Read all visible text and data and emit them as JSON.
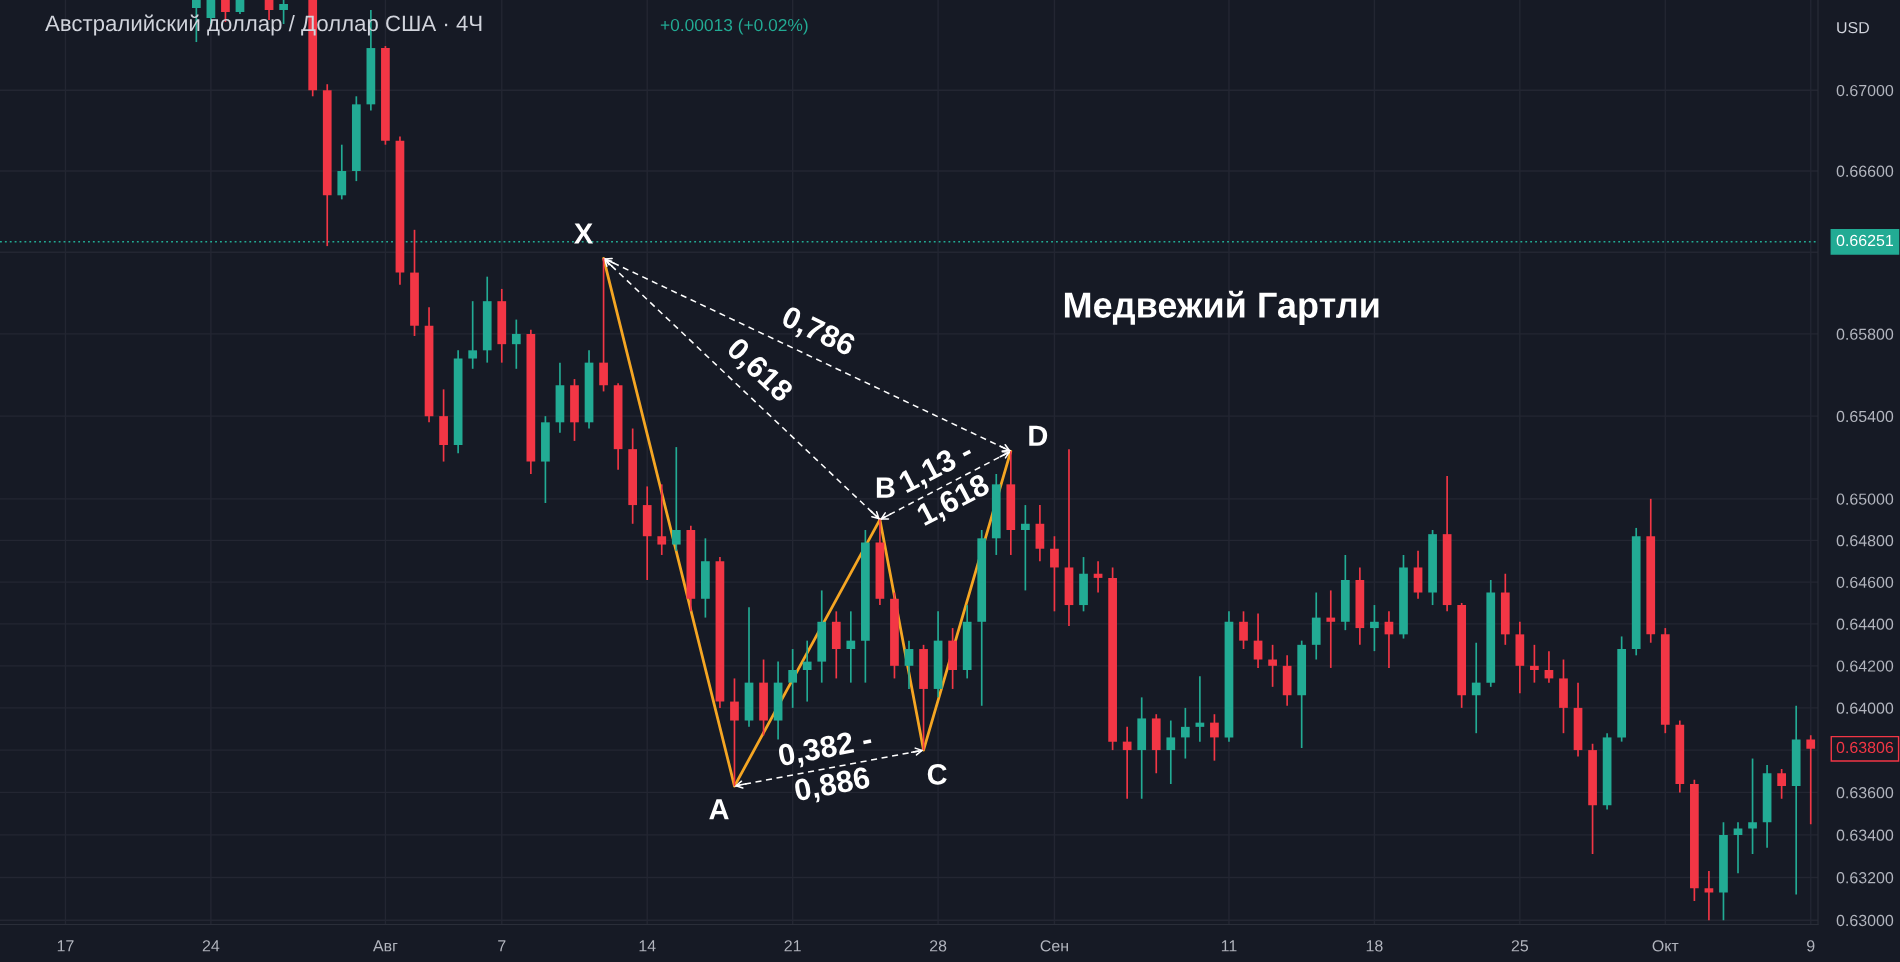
{
  "chart_data": {
    "type": "candlestick",
    "title": "Австралийский доллар / Доллар США · 4Ч",
    "subtitle": "+0.00013 (+0.02%)",
    "ylabel": "USD",
    "log": true,
    "grid": true,
    "ylim": [
      0.6298,
      0.6745
    ],
    "yticks": [
      {
        "value": 0.67,
        "label": "0.67000"
      },
      {
        "value": 0.666,
        "label": "0.66600"
      },
      {
        "value": 0.662,
        "label": null
      },
      {
        "value": 0.658,
        "label": "0.65800"
      },
      {
        "value": 0.654,
        "label": "0.65400"
      },
      {
        "value": 0.65,
        "label": "0.65000"
      },
      {
        "value": 0.648,
        "label": "0.64800"
      },
      {
        "value": 0.646,
        "label": "0.64600"
      },
      {
        "value": 0.644,
        "label": "0.64400"
      },
      {
        "value": 0.642,
        "label": "0.64200"
      },
      {
        "value": 0.64,
        "label": "0.64000"
      },
      {
        "value": 0.638,
        "label": null
      },
      {
        "value": 0.636,
        "label": "0.63600"
      },
      {
        "value": 0.634,
        "label": "0.63400"
      },
      {
        "value": 0.632,
        "label": "0.63200"
      },
      {
        "value": 0.63,
        "label": "0.63000"
      }
    ],
    "categories": [
      null,
      null,
      null,
      null,
      "17",
      null,
      null,
      null,
      null,
      null,
      null,
      null,
      null,
      null,
      "24",
      null,
      null,
      null,
      null,
      null,
      null,
      null,
      null,
      null,
      null,
      null,
      "Авг",
      null,
      null,
      null,
      null,
      null,
      null,
      null,
      "7",
      null,
      null,
      null,
      null,
      null,
      null,
      null,
      null,
      null,
      "14",
      null,
      null,
      null,
      null,
      null,
      null,
      null,
      null,
      null,
      "21",
      null,
      null,
      null,
      null,
      null,
      null,
      null,
      null,
      null,
      "28",
      null,
      null,
      null,
      null,
      null,
      null,
      null,
      "Сен",
      null,
      null,
      null,
      null,
      null,
      null,
      null,
      null,
      null,
      null,
      null,
      "11",
      null,
      null,
      null,
      null,
      null,
      null,
      null,
      null,
      null,
      "18",
      null,
      null,
      null,
      null,
      null,
      null,
      null,
      null,
      null,
      "25",
      null,
      null,
      null,
      null,
      null,
      null,
      null,
      null,
      null,
      "Окт",
      null,
      null,
      null,
      null,
      null,
      null,
      null,
      null,
      null,
      "9"
    ],
    "ohlc": [
      null,
      null,
      null,
      null,
      null,
      null,
      null,
      null,
      null,
      null,
      null,
      null,
      null,
      [
        0.6741,
        0.6745,
        0.6724,
        0.6745
      ],
      [
        0.6736,
        0.6745,
        0.6733,
        0.6745
      ],
      [
        0.6745,
        0.6745,
        0.6734,
        0.6739
      ],
      [
        0.6739,
        0.6745,
        0.6738,
        0.6745
      ],
      null,
      [
        0.6745,
        0.6745,
        0.6735,
        0.674
      ],
      [
        0.674,
        0.6745,
        0.6733,
        0.6743
      ],
      null,
      [
        0.6745,
        0.6745,
        0.6697,
        0.67
      ],
      [
        0.67,
        0.6703,
        0.6623,
        0.6648
      ],
      [
        0.6648,
        0.6673,
        0.6646,
        0.666
      ],
      [
        0.666,
        0.6697,
        0.6655,
        0.6693
      ],
      [
        0.6693,
        0.674,
        0.669,
        0.6721
      ],
      [
        0.6721,
        0.6722,
        0.6673,
        0.6675
      ],
      [
        0.6675,
        0.6677,
        0.6604,
        0.661
      ],
      [
        0.661,
        0.6631,
        0.6579,
        0.6584
      ],
      [
        0.6584,
        0.6593,
        0.6537,
        0.654
      ],
      [
        0.654,
        0.6553,
        0.6518,
        0.6526
      ],
      [
        0.6526,
        0.6572,
        0.6522,
        0.6568
      ],
      [
        0.6568,
        0.6596,
        0.6563,
        0.6572
      ],
      [
        0.6572,
        0.6608,
        0.6566,
        0.6596
      ],
      [
        0.6596,
        0.6602,
        0.6566,
        0.6575
      ],
      [
        0.6575,
        0.6587,
        0.6563,
        0.658
      ],
      [
        0.658,
        0.6582,
        0.6512,
        0.6518
      ],
      [
        0.6518,
        0.654,
        0.6498,
        0.6537
      ],
      [
        0.6537,
        0.6566,
        0.6532,
        0.6555
      ],
      [
        0.6555,
        0.6558,
        0.6528,
        0.6537
      ],
      [
        0.6537,
        0.6572,
        0.6534,
        0.6566
      ],
      [
        0.6566,
        0.6617,
        0.6552,
        0.6555
      ],
      [
        0.6555,
        0.6556,
        0.6514,
        0.6524
      ],
      [
        0.6524,
        0.6534,
        0.6488,
        0.6497
      ],
      [
        0.6497,
        0.6506,
        0.6461,
        0.6482
      ],
      [
        0.6482,
        0.6507,
        0.6473,
        0.6478
      ],
      [
        0.6478,
        0.6525,
        0.6475,
        0.6485
      ],
      [
        0.6485,
        0.6487,
        0.6446,
        0.6452
      ],
      [
        0.6452,
        0.6481,
        0.6443,
        0.647
      ],
      [
        0.647,
        0.6472,
        0.64,
        0.6403
      ],
      [
        0.6403,
        0.6414,
        0.6363,
        0.6394
      ],
      [
        0.6394,
        0.6448,
        0.6391,
        0.6412
      ],
      [
        0.6412,
        0.6423,
        0.6387,
        0.6394
      ],
      [
        0.6394,
        0.6422,
        0.6385,
        0.6412
      ],
      [
        0.6412,
        0.6428,
        0.64,
        0.6418
      ],
      [
        0.6418,
        0.6432,
        0.6403,
        0.6422
      ],
      [
        0.6422,
        0.6456,
        0.6412,
        0.6441
      ],
      [
        0.6441,
        0.6446,
        0.6414,
        0.6428
      ],
      [
        0.6428,
        0.6446,
        0.6412,
        0.6432
      ],
      [
        0.6432,
        0.6485,
        0.6412,
        0.6479
      ],
      [
        0.6479,
        0.649,
        0.6449,
        0.6452
      ],
      [
        0.6452,
        0.6455,
        0.6414,
        0.642
      ],
      [
        0.642,
        0.6432,
        0.6409,
        0.6428
      ],
      [
        0.6428,
        0.643,
        0.638,
        0.6409
      ],
      [
        0.6409,
        0.6446,
        0.6405,
        0.6432
      ],
      [
        0.6432,
        0.6438,
        0.6409,
        0.6418
      ],
      [
        0.6418,
        0.6449,
        0.6414,
        0.6441
      ],
      [
        0.6441,
        0.6485,
        0.6401,
        0.6481
      ],
      [
        0.6481,
        0.6512,
        0.6473,
        0.6507
      ],
      [
        0.6507,
        0.6523,
        0.6473,
        0.6485
      ],
      [
        0.6485,
        0.6497,
        0.6456,
        0.6488
      ],
      [
        0.6488,
        0.6497,
        0.647,
        0.6476
      ],
      [
        0.6476,
        0.6482,
        0.6446,
        0.6467
      ],
      [
        0.6467,
        0.6524,
        0.6439,
        0.6449
      ],
      [
        0.6449,
        0.6472,
        0.6446,
        0.6464
      ],
      [
        0.6464,
        0.647,
        0.6455,
        0.6462
      ],
      [
        0.6462,
        0.6467,
        0.638,
        0.6384
      ],
      [
        0.6384,
        0.6391,
        0.6357,
        0.638
      ],
      [
        0.638,
        0.6405,
        0.6357,
        0.6395
      ],
      [
        0.6395,
        0.6397,
        0.6369,
        0.638
      ],
      [
        0.638,
        0.6394,
        0.6364,
        0.6386
      ],
      [
        0.6386,
        0.64,
        0.6376,
        0.6391
      ],
      [
        0.6391,
        0.6415,
        0.6384,
        0.6393
      ],
      [
        0.6393,
        0.6397,
        0.6375,
        0.6386
      ],
      [
        0.6386,
        0.6446,
        0.6384,
        0.6441
      ],
      [
        0.6441,
        0.6446,
        0.6428,
        0.6432
      ],
      [
        0.6432,
        0.6445,
        0.6419,
        0.6423
      ],
      [
        0.6423,
        0.643,
        0.641,
        0.642
      ],
      [
        0.642,
        0.6425,
        0.6401,
        0.6406
      ],
      [
        0.6406,
        0.6432,
        0.6381,
        0.643
      ],
      [
        0.643,
        0.6455,
        0.6423,
        0.6443
      ],
      [
        0.6443,
        0.6456,
        0.6419,
        0.6441
      ],
      [
        0.6441,
        0.6473,
        0.6437,
        0.6461
      ],
      [
        0.6461,
        0.6467,
        0.643,
        0.6438
      ],
      [
        0.6438,
        0.6449,
        0.6427,
        0.6441
      ],
      [
        0.6441,
        0.6446,
        0.6419,
        0.6435
      ],
      [
        0.6435,
        0.6473,
        0.6433,
        0.6467
      ],
      [
        0.6467,
        0.6475,
        0.6452,
        0.6455
      ],
      [
        0.6455,
        0.6485,
        0.6449,
        0.6483
      ],
      [
        0.6483,
        0.6511,
        0.6446,
        0.6449
      ],
      [
        0.6449,
        0.645,
        0.64,
        0.6406
      ],
      [
        0.6406,
        0.6431,
        0.6388,
        0.6412
      ],
      [
        0.6412,
        0.6461,
        0.641,
        0.6455
      ],
      [
        0.6455,
        0.6464,
        0.643,
        0.6435
      ],
      [
        0.6435,
        0.6441,
        0.6407,
        0.642
      ],
      [
        0.642,
        0.643,
        0.6412,
        0.6418
      ],
      [
        0.6418,
        0.6427,
        0.6412,
        0.6414
      ],
      [
        0.6414,
        0.6423,
        0.6388,
        0.64
      ],
      [
        0.64,
        0.6412,
        0.6377,
        0.638
      ],
      [
        0.638,
        0.6383,
        0.6331,
        0.6354
      ],
      [
        0.6354,
        0.6388,
        0.6352,
        0.6386
      ],
      [
        0.6386,
        0.6434,
        0.6384,
        0.6428
      ],
      [
        0.6428,
        0.6486,
        0.6425,
        0.6482
      ],
      [
        0.6482,
        0.65,
        0.6431,
        0.6435
      ],
      [
        0.6435,
        0.6438,
        0.6388,
        0.6392
      ],
      [
        0.6392,
        0.6394,
        0.636,
        0.6364
      ],
      [
        0.6364,
        0.6366,
        0.6309,
        0.6315
      ],
      [
        0.6315,
        0.6323,
        0.63,
        0.6313
      ],
      [
        0.6313,
        0.6346,
        0.63,
        0.634
      ],
      [
        0.634,
        0.6346,
        0.6322,
        0.6343
      ],
      [
        0.6343,
        0.6376,
        0.6331,
        0.6346
      ],
      [
        0.6346,
        0.6373,
        0.6334,
        0.6369
      ],
      [
        0.6369,
        0.6371,
        0.6357,
        0.6363
      ],
      [
        0.6363,
        0.6401,
        0.6312,
        0.6385
      ],
      [
        0.6385,
        0.6387,
        0.6345,
        0.63806
      ]
    ],
    "colors": [
      null,
      null,
      null,
      null,
      null,
      null,
      null,
      null,
      null,
      null,
      null,
      null,
      null,
      "#22ab94",
      "#22ab94",
      "#f23645",
      "#22ab94",
      null,
      "#f23645",
      "#22ab94",
      null,
      "#f23645",
      "#f23645",
      "#22ab94",
      "#22ab94",
      "#22ab94",
      "#f23645",
      "#f23645",
      "#f23645",
      "#f23645",
      "#f23645",
      "#22ab94",
      "#22ab94",
      "#22ab94",
      "#f23645",
      "#22ab94",
      "#f23645",
      "#22ab94",
      "#22ab94",
      "#f23645",
      "#22ab94",
      "#f23645",
      "#f23645",
      "#f23645",
      "#f23645",
      "#f23645",
      "#22ab94",
      "#f23645",
      "#22ab94",
      "#f23645",
      "#f23645",
      "#22ab94",
      "#f23645",
      "#22ab94",
      "#22ab94",
      "#22ab94",
      "#22ab94",
      "#f23645",
      "#22ab94",
      "#22ab94",
      "#f23645",
      "#f23645",
      "#22ab94",
      "#f23645",
      "#22ab94",
      "#f23645",
      "#22ab94",
      "#22ab94",
      "#22ab94",
      "#f23645",
      "#22ab94",
      "#f23645",
      "#f23645",
      "#f23645",
      "#22ab94",
      "#f23645",
      "#f23645",
      "#f23645",
      "#22ab94",
      "#f23645",
      "#22ab94",
      "#22ab94",
      "#22ab94",
      "#f23645",
      "#22ab94",
      "#f23645",
      "#f23645",
      "#f23645",
      "#f23645",
      "#22ab94",
      "#22ab94",
      "#f23645",
      "#22ab94",
      "#f23645",
      "#22ab94",
      "#f23645",
      "#22ab94",
      "#f23645",
      "#22ab94",
      "#f23645",
      "#f23645",
      "#22ab94",
      "#22ab94",
      "#f23645",
      "#f23645",
      "#f23645",
      "#f23645",
      "#f23645",
      "#f23645",
      "#f23645",
      "#22ab94",
      "#22ab94",
      "#22ab94",
      "#f23645",
      "#f23645",
      "#f23645",
      "#f23645",
      "#f23645",
      "#22ab94",
      "#22ab94",
      "#22ab94",
      "#22ab94",
      "#f23645",
      "#22ab94",
      "#f23645"
    ],
    "value_labels": [
      null,
      null,
      null,
      null,
      null,
      null,
      null,
      null,
      null,
      null,
      null,
      null,
      null,
      null,
      null,
      null,
      null,
      null,
      null,
      null,
      null,
      null,
      null,
      null,
      null,
      null,
      null,
      null,
      null,
      null,
      null,
      null,
      null,
      null,
      null,
      null,
      null,
      null,
      null,
      null,
      null,
      null,
      null,
      null,
      null,
      null,
      null,
      null,
      null,
      null,
      null,
      null,
      null,
      null,
      null,
      null,
      null,
      null,
      null,
      null,
      null,
      null,
      null,
      null,
      null,
      null,
      null,
      null,
      null,
      null,
      null,
      null,
      null,
      null,
      null,
      null,
      null,
      null,
      null,
      null,
      null,
      null,
      null,
      null,
      null,
      null,
      null,
      null,
      null,
      null,
      null,
      null,
      null,
      null,
      null,
      null,
      null,
      null,
      null,
      null,
      null,
      null,
      null,
      null,
      null,
      null,
      null,
      null,
      null,
      null,
      null,
      null,
      null,
      null,
      null,
      null,
      null,
      null,
      null,
      null,
      null,
      null,
      null,
      null,
      "0.63806"
    ],
    "series": [
      {
        "type": "line",
        "color": "#f5a623",
        "values": [
          null,
          null,
          null,
          null,
          null,
          null,
          null,
          null,
          null,
          null,
          null,
          null,
          null,
          null,
          null,
          null,
          null,
          null,
          null,
          null,
          null,
          null,
          null,
          null,
          null,
          null,
          null,
          null,
          null,
          null,
          null,
          null,
          null,
          null,
          null,
          null,
          null,
          null,
          null,
          null,
          null,
          0.6617,
          null,
          null,
          null,
          null,
          null,
          null,
          null,
          null,
          0.6363,
          null,
          null,
          null,
          null,
          null,
          null,
          null,
          null,
          null,
          0.649,
          null,
          null,
          0.638,
          null,
          null,
          null,
          null,
          null,
          0.6523,
          null,
          null,
          null,
          null,
          null,
          null,
          null,
          null,
          null,
          null,
          null,
          null,
          null,
          null,
          null,
          null,
          null,
          null,
          null,
          null,
          null,
          null,
          null,
          null,
          null,
          null,
          null,
          null,
          null,
          null,
          null,
          null,
          null,
          null,
          null,
          null,
          null,
          null,
          null,
          null,
          null,
          null,
          null,
          null,
          null,
          null,
          null,
          null,
          null,
          null,
          null,
          null,
          null,
          null,
          null
        ],
        "value_labels": [
          null,
          null,
          null,
          null,
          null,
          null,
          null,
          null,
          null,
          null,
          null,
          null,
          null,
          null,
          null,
          null,
          null,
          null,
          null,
          null,
          null,
          null,
          null,
          null,
          null,
          null,
          null,
          null,
          null,
          null,
          null,
          null,
          null,
          null,
          null,
          null,
          null,
          null,
          null,
          null,
          null,
          "X",
          null,
          null,
          null,
          null,
          null,
          null,
          null,
          null,
          "A",
          null,
          null,
          null,
          null,
          null,
          null,
          null,
          null,
          null,
          "B",
          null,
          null,
          "C",
          null,
          null,
          null,
          null,
          null,
          "D",
          null,
          null,
          null,
          null,
          null,
          null,
          null,
          null,
          null,
          null,
          null,
          null,
          null,
          null,
          null,
          null,
          null,
          null,
          null,
          null,
          null,
          null,
          null,
          null,
          null,
          null,
          null,
          null,
          null,
          null,
          null,
          null,
          null,
          null,
          null,
          null,
          null,
          null,
          null,
          null,
          null,
          null,
          null,
          null,
          null,
          null,
          null,
          null,
          null,
          null,
          null,
          null,
          null,
          null,
          null
        ]
      },
      {
        "type": "line",
        "name": "0,618",
        "color": "#ffffff",
        "line_style": "dashed",
        "marker": "cross",
        "values": [
          null,
          null,
          null,
          null,
          null,
          null,
          null,
          null,
          null,
          null,
          null,
          null,
          null,
          null,
          null,
          null,
          null,
          null,
          null,
          null,
          null,
          null,
          null,
          null,
          null,
          null,
          null,
          null,
          null,
          null,
          null,
          null,
          null,
          null,
          null,
          null,
          null,
          null,
          null,
          null,
          null,
          0.6617,
          null,
          null,
          null,
          null,
          null,
          null,
          null,
          null,
          null,
          null,
          null,
          null,
          null,
          null,
          null,
          null,
          null,
          null,
          0.649,
          null,
          null,
          null,
          null,
          null,
          null,
          null,
          null,
          null,
          null,
          null,
          null,
          null,
          null,
          null,
          null,
          null,
          null,
          null,
          null,
          null,
          null,
          null,
          null,
          null,
          null,
          null,
          null,
          null,
          null,
          null,
          null,
          null,
          null,
          null,
          null,
          null,
          null,
          null,
          null,
          null,
          null,
          null,
          null,
          null,
          null,
          null,
          null,
          null,
          null,
          null,
          null,
          null,
          null,
          null,
          null,
          null,
          null,
          null,
          null,
          null,
          null,
          null,
          null
        ]
      },
      {
        "type": "line",
        "name": "0,786",
        "color": "#ffffff",
        "line_style": "dashed",
        "marker": "cross",
        "values": [
          null,
          null,
          null,
          null,
          null,
          null,
          null,
          null,
          null,
          null,
          null,
          null,
          null,
          null,
          null,
          null,
          null,
          null,
          null,
          null,
          null,
          null,
          null,
          null,
          null,
          null,
          null,
          null,
          null,
          null,
          null,
          null,
          null,
          null,
          null,
          null,
          null,
          null,
          null,
          null,
          null,
          0.6617,
          null,
          null,
          null,
          null,
          null,
          null,
          null,
          null,
          null,
          null,
          null,
          null,
          null,
          null,
          null,
          null,
          null,
          null,
          null,
          null,
          null,
          null,
          null,
          null,
          null,
          null,
          null,
          0.6523,
          null,
          null,
          null,
          null,
          null,
          null,
          null,
          null,
          null,
          null,
          null,
          null,
          null,
          null,
          null,
          null,
          null,
          null,
          null,
          null,
          null,
          null,
          null,
          null,
          null,
          null,
          null,
          null,
          null,
          null,
          null,
          null,
          null,
          null,
          null,
          null,
          null,
          null,
          null,
          null,
          null,
          null,
          null,
          null,
          null,
          null,
          null,
          null,
          null,
          null,
          null,
          null,
          null,
          null,
          null
        ]
      },
      {
        "type": "line",
        "name": "0,382 -\n0,886",
        "color": "#ffffff",
        "line_style": "dashed",
        "marker": "cross",
        "values": [
          null,
          null,
          null,
          null,
          null,
          null,
          null,
          null,
          null,
          null,
          null,
          null,
          null,
          null,
          null,
          null,
          null,
          null,
          null,
          null,
          null,
          null,
          null,
          null,
          null,
          null,
          null,
          null,
          null,
          null,
          null,
          null,
          null,
          null,
          null,
          null,
          null,
          null,
          null,
          null,
          null,
          null,
          null,
          null,
          null,
          null,
          null,
          null,
          null,
          null,
          0.6363,
          null,
          null,
          null,
          null,
          null,
          null,
          null,
          null,
          null,
          null,
          null,
          null,
          0.638,
          null,
          null,
          null,
          null,
          null,
          null,
          null,
          null,
          null,
          null,
          null,
          null,
          null,
          null,
          null,
          null,
          null,
          null,
          null,
          null,
          null,
          null,
          null,
          null,
          null,
          null,
          null,
          null,
          null,
          null,
          null,
          null,
          null,
          null,
          null,
          null,
          null,
          null,
          null,
          null,
          null,
          null,
          null,
          null,
          null,
          null,
          null,
          null,
          null,
          null,
          null,
          null,
          null,
          null,
          null,
          null,
          null,
          null,
          null,
          null,
          null
        ]
      },
      {
        "type": "line",
        "name": "1,13 -\n1,618",
        "color": "#ffffff",
        "line_style": "dashed",
        "marker": "cross",
        "values": [
          null,
          null,
          null,
          null,
          null,
          null,
          null,
          null,
          null,
          null,
          null,
          null,
          null,
          null,
          null,
          null,
          null,
          null,
          null,
          null,
          null,
          null,
          null,
          null,
          null,
          null,
          null,
          null,
          null,
          null,
          null,
          null,
          null,
          null,
          null,
          null,
          null,
          null,
          null,
          null,
          null,
          null,
          null,
          null,
          null,
          null,
          null,
          null,
          null,
          null,
          null,
          null,
          null,
          null,
          null,
          null,
          null,
          null,
          null,
          null,
          0.649,
          null,
          null,
          null,
          null,
          null,
          null,
          null,
          null,
          0.6523,
          null,
          null,
          null,
          null,
          null,
          null,
          null,
          null,
          null,
          null,
          null,
          null,
          null,
          null,
          null,
          null,
          null,
          null,
          null,
          null,
          null,
          null,
          null,
          null,
          null,
          null,
          null,
          null,
          null,
          null,
          null,
          null,
          null,
          null,
          null,
          null,
          null,
          null,
          null,
          null,
          null,
          null,
          null,
          null,
          null,
          null,
          null,
          null,
          null,
          null,
          null,
          null,
          null,
          null,
          null
        ]
      }
    ],
    "annotations": [
      "Медвежий Гартли"
    ],
    "ref_lines": [
      {
        "axis": "y",
        "value": 0.66251,
        "label": "0.66251",
        "color": "#22ab94",
        "line_style": "dotted"
      }
    ]
  }
}
